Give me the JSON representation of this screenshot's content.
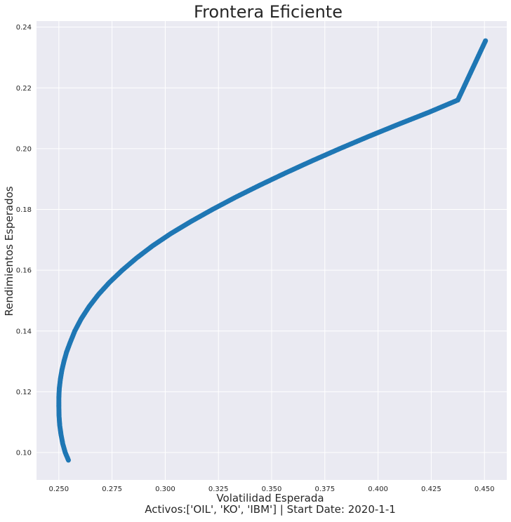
{
  "chart_data": {
    "type": "scatter",
    "title": "Frontera Eficiente",
    "xlabel": "Volatilidad Esperada",
    "xlabel_line2": "Activos:['OIL', 'KO', 'IBM'] | Start Date: 2020-1-1",
    "ylabel": "Rendimientos Esperados",
    "xlim": [
      0.2395,
      0.4605
    ],
    "ylim": [
      0.091,
      0.242
    ],
    "xticks": [
      0.25,
      0.275,
      0.3,
      0.325,
      0.35,
      0.375,
      0.4,
      0.425,
      0.45
    ],
    "xtick_labels": [
      "0.250",
      "0.275",
      "0.300",
      "0.325",
      "0.350",
      "0.375",
      "0.400",
      "0.425",
      "0.450"
    ],
    "yticks": [
      0.1,
      0.12,
      0.14,
      0.16,
      0.18,
      0.2,
      0.22,
      0.24
    ],
    "ytick_labels": [
      "0.10",
      "0.12",
      "0.14",
      "0.16",
      "0.18",
      "0.20",
      "0.22",
      "0.24"
    ],
    "grid": true,
    "background_color": "#eaeaf2",
    "grid_color": "#ffffff",
    "marker_color": "#1f77b4",
    "series": [
      {
        "x": [
          0.2545,
          0.253,
          0.2518,
          0.251,
          0.2504,
          0.2501,
          0.25,
          0.25,
          0.2502,
          0.2507,
          0.2514,
          0.2524,
          0.2536,
          0.2552,
          0.2575,
          0.2605,
          0.2642,
          0.2686,
          0.2738,
          0.2798,
          0.2865,
          0.294,
          0.3025,
          0.312,
          0.3222,
          0.333,
          0.3445,
          0.3565,
          0.369,
          0.382,
          0.3955,
          0.4095,
          0.424,
          0.4375,
          0.4505
        ],
        "y": [
          0.0975,
          0.1,
          0.103,
          0.106,
          0.109,
          0.112,
          0.115,
          0.118,
          0.121,
          0.124,
          0.127,
          0.13,
          0.133,
          0.136,
          0.14,
          0.144,
          0.148,
          0.152,
          0.156,
          0.16,
          0.164,
          0.168,
          0.172,
          0.176,
          0.18,
          0.184,
          0.188,
          0.192,
          0.196,
          0.2,
          0.204,
          0.208,
          0.212,
          0.216,
          0.2355
        ]
      }
    ]
  }
}
